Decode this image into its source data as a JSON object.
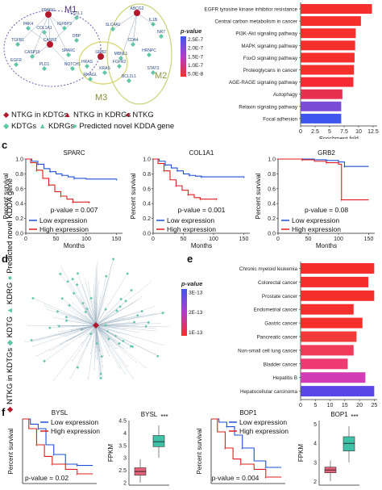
{
  "panel_labels": {
    "a": "",
    "b": "",
    "c": "c",
    "d": "d",
    "e": "e",
    "f": "f"
  },
  "network_a": {
    "modules": [
      "M1",
      "M2",
      "M3"
    ],
    "nodes_m1": [
      "PPARG",
      "FSTL1",
      "PAK4",
      "IGFBP3",
      "COL1A1",
      "TGFB1",
      "CASP2",
      "DBP",
      "CASP10",
      "SPARC",
      "EGFR",
      "PLD1",
      "NOTCH1"
    ],
    "nodes_m2": [
      "ABCG2",
      "IL1B",
      "SLC4A1",
      "NR7",
      "CD44",
      "HRNPC",
      "MBNL1",
      "STAT3",
      "BCL2L1"
    ],
    "nodes_m3": [
      "GRB2",
      "HRAS",
      "KRAS",
      "FGFR2",
      "RHAGL"
    ]
  },
  "legend_a": {
    "items": [
      "NTKG in KDTGs",
      "NTKG in KDRGs",
      "NTKG",
      "KDTGs",
      "KDRGs",
      "Predicted novel KDDA gene"
    ],
    "colors": {
      "diamond": "#b2182b",
      "triangle": "#b2182b",
      "circle": "#b2182b",
      "teal": "#5fc7a8"
    }
  },
  "chart_b": {
    "type": "bar",
    "categories": [
      "EGFR tyrosine kinase inhibitor resistance",
      "Central carbon metabolism in cancer",
      "PI3K-Akt signaling pathway",
      "MAPK signaling pathway",
      "FoxO signaling pathway",
      "Proteoglycans in cancer",
      "AGE-RAGE signaling pathway",
      "Autophagy",
      "Relaxin signaling pathway",
      "Focal adhesion"
    ],
    "values": [
      12.3,
      10.4,
      9.5,
      9.4,
      9.3,
      9.2,
      9.1,
      7.2,
      7.0,
      7.0
    ],
    "colors": [
      "#f52f2c",
      "#f52f2c",
      "#f52f2c",
      "#f52f2c",
      "#f52f2c",
      "#f52f2c",
      "#f62a34",
      "#e73050",
      "#7a4cd6",
      "#3f56ee"
    ],
    "xticks": [
      "0",
      "2.5",
      "5",
      "7.5",
      "10",
      "12.5"
    ],
    "xlabel": "Enrichment fold",
    "legend_title": "p-value",
    "legend_ticks": [
      "2.5E-7",
      "2.0E-7",
      "1.5E-7",
      "1.0E-7",
      "5.0E-8"
    ]
  },
  "chart_c": {
    "type": "line",
    "ylabel": "Percent survival",
    "xlabel": "Months",
    "yticks": [
      "0.0",
      "0.2",
      "0.4",
      "0.6",
      "0.8",
      "1.0"
    ],
    "legend": [
      "Low expression",
      "High expression"
    ],
    "colors": {
      "low": "#1f4fd6",
      "high": "#e11d1d"
    },
    "plots": [
      {
        "title": "SPARC",
        "pvalue": "p-value = 0.007",
        "xticks": [
          "0",
          "50",
          "100",
          "150"
        ],
        "low": [
          [
            0,
            1
          ],
          [
            10,
            0.97
          ],
          [
            20,
            0.93
          ],
          [
            30,
            0.87
          ],
          [
            40,
            0.83
          ],
          [
            50,
            0.8
          ],
          [
            60,
            0.78
          ],
          [
            70,
            0.76
          ],
          [
            80,
            0.74
          ],
          [
            100,
            0.73
          ],
          [
            150,
            0.73
          ]
        ],
        "high": [
          [
            0,
            1
          ],
          [
            8,
            0.95
          ],
          [
            18,
            0.85
          ],
          [
            28,
            0.74
          ],
          [
            38,
            0.65
          ],
          [
            48,
            0.56
          ],
          [
            58,
            0.5
          ],
          [
            68,
            0.46
          ],
          [
            78,
            0.42
          ],
          [
            90,
            0.42
          ],
          [
            105,
            0.42
          ]
        ]
      },
      {
        "title": "COL1A1",
        "pvalue": "p-value = 0.001",
        "xticks": [
          "0",
          "50",
          "100",
          "150"
        ],
        "low": [
          [
            0,
            1
          ],
          [
            10,
            0.97
          ],
          [
            20,
            0.92
          ],
          [
            30,
            0.88
          ],
          [
            40,
            0.84
          ],
          [
            50,
            0.8
          ],
          [
            60,
            0.78
          ],
          [
            70,
            0.77
          ],
          [
            80,
            0.76
          ],
          [
            100,
            0.76
          ],
          [
            150,
            0.76
          ]
        ],
        "high": [
          [
            0,
            1
          ],
          [
            8,
            0.94
          ],
          [
            18,
            0.84
          ],
          [
            28,
            0.72
          ],
          [
            38,
            0.64
          ],
          [
            48,
            0.58
          ],
          [
            58,
            0.52
          ],
          [
            68,
            0.48
          ],
          [
            78,
            0.46
          ],
          [
            90,
            0.46
          ],
          [
            105,
            0.46
          ]
        ]
      },
      {
        "title": "GRB2",
        "pvalue": "p-value = 0.08",
        "xticks": [
          "0",
          "50",
          "100",
          "150"
        ],
        "low": [
          [
            0,
            1
          ],
          [
            20,
            1
          ],
          [
            40,
            1
          ],
          [
            60,
            0.99
          ],
          [
            80,
            0.98
          ],
          [
            100,
            0.96
          ],
          [
            110,
            0.9
          ],
          [
            150,
            0.9
          ]
        ],
        "high": [
          [
            0,
            1
          ],
          [
            20,
            1
          ],
          [
            40,
            0.99
          ],
          [
            60,
            0.97
          ],
          [
            80,
            0.95
          ],
          [
            100,
            0.93
          ],
          [
            105,
            0.45
          ],
          [
            150,
            0.45
          ]
        ]
      }
    ]
  },
  "legend_d": {
    "items": [
      "NTKG in KDTGs",
      "KDTG",
      "KDRG",
      "Predicted novel KDDA gene"
    ]
  },
  "chart_e": {
    "type": "bar",
    "categories": [
      "Chronic myeloid leukemia",
      "Colorectal cancer",
      "Prostate cancer",
      "Endometrial cancer",
      "Gastric cancer",
      "Pancreatic cancer",
      "Non-small cell lung cancer",
      "Bladder cancer",
      "Hepatitis B",
      "Hepatocellular carcinoma"
    ],
    "values": [
      25,
      23,
      25,
      18,
      21,
      19,
      18,
      16,
      22,
      25
    ],
    "colors": [
      "#f52f2c",
      "#f52f2c",
      "#f52f2c",
      "#f52f2c",
      "#f52f2c",
      "#f33a3a",
      "#f03a5a",
      "#ee3a72",
      "#d23cb4",
      "#5a46e6"
    ],
    "xticks": [
      "0",
      "5",
      "10",
      "15",
      "20",
      "25"
    ],
    "xlabel": "Enrichment fold",
    "legend_title": "p-value",
    "legend_ticks": [
      "3E-13",
      "2E-13",
      "1E-13"
    ]
  },
  "panel_f": {
    "survival": [
      {
        "title": "BYSL",
        "pvalue": "p-value = 0.02",
        "legend": [
          "Low expression",
          "High expression"
        ]
      },
      {
        "title": "BOP1",
        "pvalue": "p-value = 0.004",
        "legend": [
          "Low expression",
          "High expression"
        ]
      }
    ],
    "ylabel": "Percent survival",
    "boxplots": [
      {
        "title": "BYSL",
        "stars": "***",
        "ylabel": "FPKM",
        "yticks": [
          "2",
          "2.5",
          "3",
          "3.5",
          "4",
          "4.5"
        ],
        "low": {
          "min": 2.0,
          "q1": 2.3,
          "median": 2.45,
          "q3": 2.6,
          "max": 2.95
        },
        "high": {
          "min": 3.0,
          "q1": 3.45,
          "median": 3.65,
          "q3": 3.9,
          "max": 4.3
        }
      },
      {
        "title": "BOP1",
        "stars": "***",
        "ylabel": "FPKM",
        "yticks": [
          "2",
          "3",
          "4",
          "5"
        ],
        "low": {
          "min": 2.0,
          "q1": 2.45,
          "median": 2.6,
          "q3": 2.75,
          "max": 3.1
        },
        "high": {
          "min": 3.0,
          "q1": 3.6,
          "median": 4.0,
          "q3": 4.35,
          "max": 4.9
        }
      }
    ]
  }
}
